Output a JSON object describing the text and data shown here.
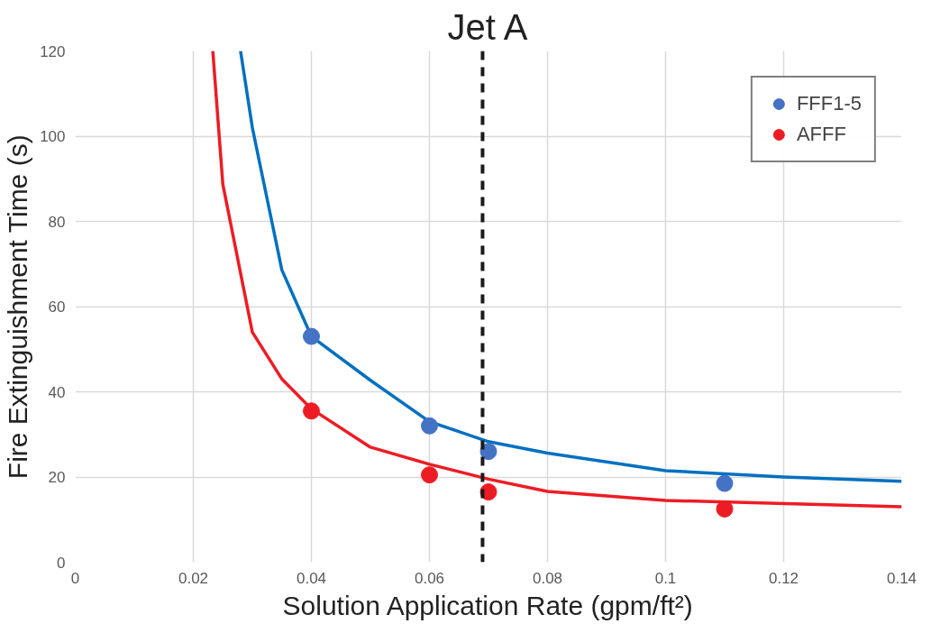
{
  "chart_data": {
    "type": "scatter",
    "title": "Jet A",
    "xlabel": "Solution Application Rate (gpm/ft²)",
    "ylabel": "Fire Extinguishment Time (s)",
    "x": [
      0.04,
      0.06,
      0.07,
      0.11
    ],
    "series": [
      {
        "name": "FFF1-5",
        "color": "#4472c4",
        "marker": "circle",
        "values": [
          53,
          32,
          26,
          18.5
        ]
      },
      {
        "name": "AFFF",
        "color": "#ed1c24",
        "marker": "circle",
        "values": [
          35.5,
          20.5,
          16.5,
          12.5
        ]
      },
      {
        "type": "line",
        "marker": "none",
        "color": "#0070c0",
        "x": [
          0.028,
          0.03,
          0.035,
          0.04,
          0.05,
          0.06,
          0.07,
          0.08,
          0.1,
          0.12,
          0.14
        ],
        "values": [
          120,
          102,
          68.6,
          53,
          42.7,
          33,
          28.3,
          25.6,
          21.5,
          20,
          19
        ]
      },
      {
        "type": "line",
        "marker": "none",
        "color": "#ed1c24",
        "x": [
          0.0233,
          0.025,
          0.03,
          0.035,
          0.04,
          0.05,
          0.06,
          0.07,
          0.08,
          0.1,
          0.14
        ],
        "values": [
          120,
          88.7,
          54,
          43,
          36,
          27,
          23,
          19.5,
          16.6,
          14.5,
          13
        ]
      }
    ],
    "xlim": [
      0,
      0.14
    ],
    "xticks": [
      0,
      0.02,
      0.04,
      0.06,
      0.08,
      0.1,
      0.12,
      0.14
    ],
    "ylim": [
      0,
      120
    ],
    "yticks": [
      0,
      20,
      40,
      60,
      80,
      100,
      120
    ],
    "ref_lines": [
      {
        "axis": "x",
        "value": 0.069,
        "color": "#1a1a1a",
        "line_style": "dashed"
      }
    ],
    "grid": true,
    "legend": "top right"
  }
}
